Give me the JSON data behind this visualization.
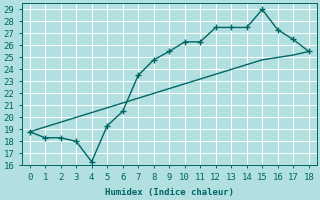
{
  "line1_x": [
    0,
    1,
    2,
    3,
    4,
    5,
    6,
    7,
    8,
    9,
    10,
    11,
    12,
    13,
    14,
    15,
    16,
    17,
    18
  ],
  "line1_y": [
    18.8,
    18.3,
    18.3,
    18.0,
    16.3,
    19.3,
    20.5,
    23.5,
    24.8,
    25.5,
    26.3,
    26.3,
    27.5,
    27.5,
    27.5,
    29.0,
    27.3,
    26.5,
    25.5
  ],
  "line2_x": [
    0,
    1,
    2,
    3,
    4,
    5,
    6,
    7,
    8,
    9,
    10,
    11,
    12,
    13,
    14,
    15,
    16,
    17,
    18
  ],
  "line2_y": [
    18.8,
    19.2,
    19.6,
    20.0,
    20.4,
    20.8,
    21.2,
    21.6,
    22.0,
    22.4,
    22.8,
    23.2,
    23.6,
    24.0,
    24.4,
    24.8,
    25.0,
    25.2,
    25.5
  ],
  "line_color": "#006666",
  "bg_color": "#b2dfdf",
  "grid_color": "#ffffff",
  "xlabel": "Humidex (Indice chaleur)",
  "xlim": [
    -0.5,
    18.5
  ],
  "ylim": [
    16,
    29.5
  ],
  "xticks": [
    0,
    1,
    2,
    3,
    4,
    5,
    6,
    7,
    8,
    9,
    10,
    11,
    12,
    13,
    14,
    15,
    16,
    17,
    18
  ],
  "yticks": [
    16,
    17,
    18,
    19,
    20,
    21,
    22,
    23,
    24,
    25,
    26,
    27,
    28,
    29
  ],
  "marker": "+",
  "markersize": 4,
  "linewidth": 1.0,
  "font_size": 6.5
}
